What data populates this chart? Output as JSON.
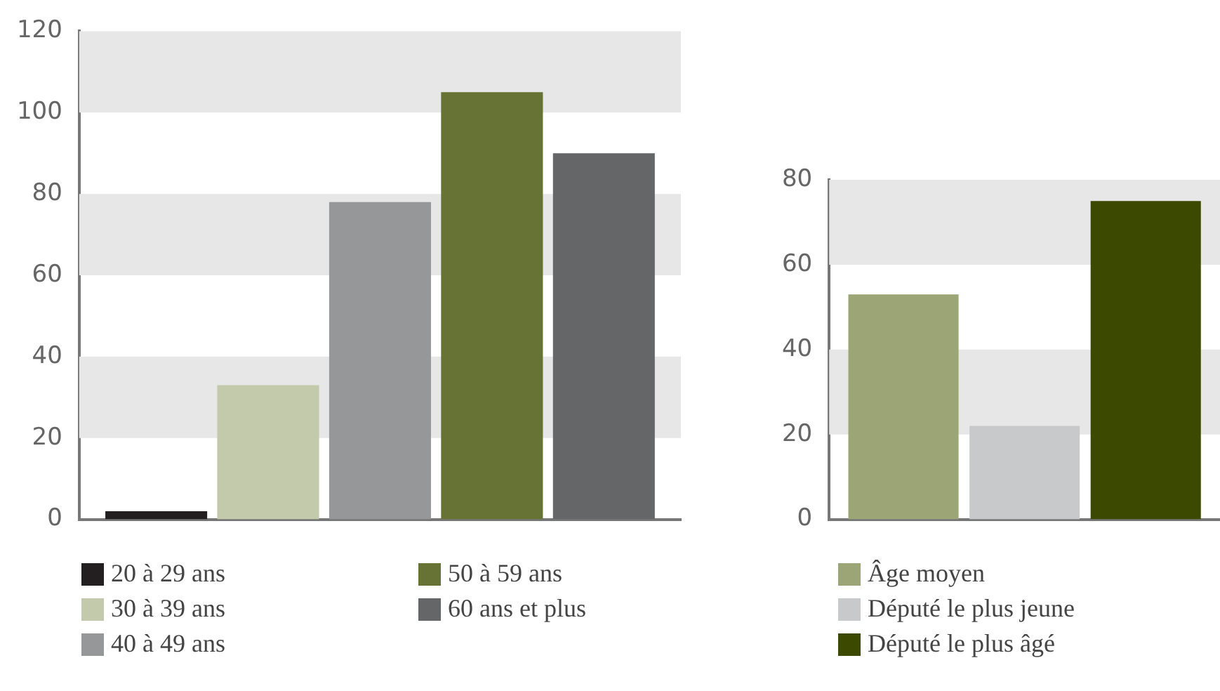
{
  "chart_data": [
    {
      "type": "bar",
      "categories": [
        null
      ],
      "series": [
        {
          "name": "20 à 29 ans",
          "color": "#231f20",
          "values": [
            2
          ]
        },
        {
          "name": "30 à 39 ans",
          "color": "#c3c9ab",
          "values": [
            33
          ]
        },
        {
          "name": "40 à 49 ans",
          "color": "#969798",
          "values": [
            78
          ]
        },
        {
          "name": "50 à 59 ans",
          "color": "#667335",
          "values": [
            105
          ]
        },
        {
          "name": "60 ans et plus",
          "color": "#656668",
          "values": [
            90
          ]
        }
      ],
      "ylim": [
        0,
        120
      ],
      "yticks": [
        0,
        20,
        40,
        60,
        80,
        100,
        120
      ],
      "bands": [
        {
          "axis": "y",
          "from": 20,
          "to": 40,
          "color": "#e6e7e6"
        },
        {
          "axis": "y",
          "from": 60,
          "to": 80,
          "color": "#e6e7e6"
        },
        {
          "axis": "y",
          "from": 100,
          "to": 120,
          "color": "#e6e7e6"
        }
      ],
      "legend": "bottom",
      "tick_labels": "y"
    },
    {
      "type": "bar",
      "categories": [
        null
      ],
      "series": [
        {
          "name": "Âge moyen",
          "color": "#9ca575",
          "values": [
            53
          ]
        },
        {
          "name": "Député le plus jeune",
          "color": "#c8c9cb",
          "values": [
            22
          ]
        },
        {
          "name": "Député le plus âgé",
          "color": "#3b4a00",
          "values": [
            75
          ]
        }
      ],
      "ylim": [
        0,
        80
      ],
      "yticks": [
        0,
        20,
        40,
        60,
        80
      ],
      "bands": [
        {
          "axis": "y",
          "from": 20,
          "to": 40,
          "color": "#e6e7e6"
        },
        {
          "axis": "y",
          "from": 60,
          "to": 80,
          "color": "#e6e7e6"
        }
      ],
      "legend": "bottom",
      "tick_labels": "y"
    }
  ]
}
